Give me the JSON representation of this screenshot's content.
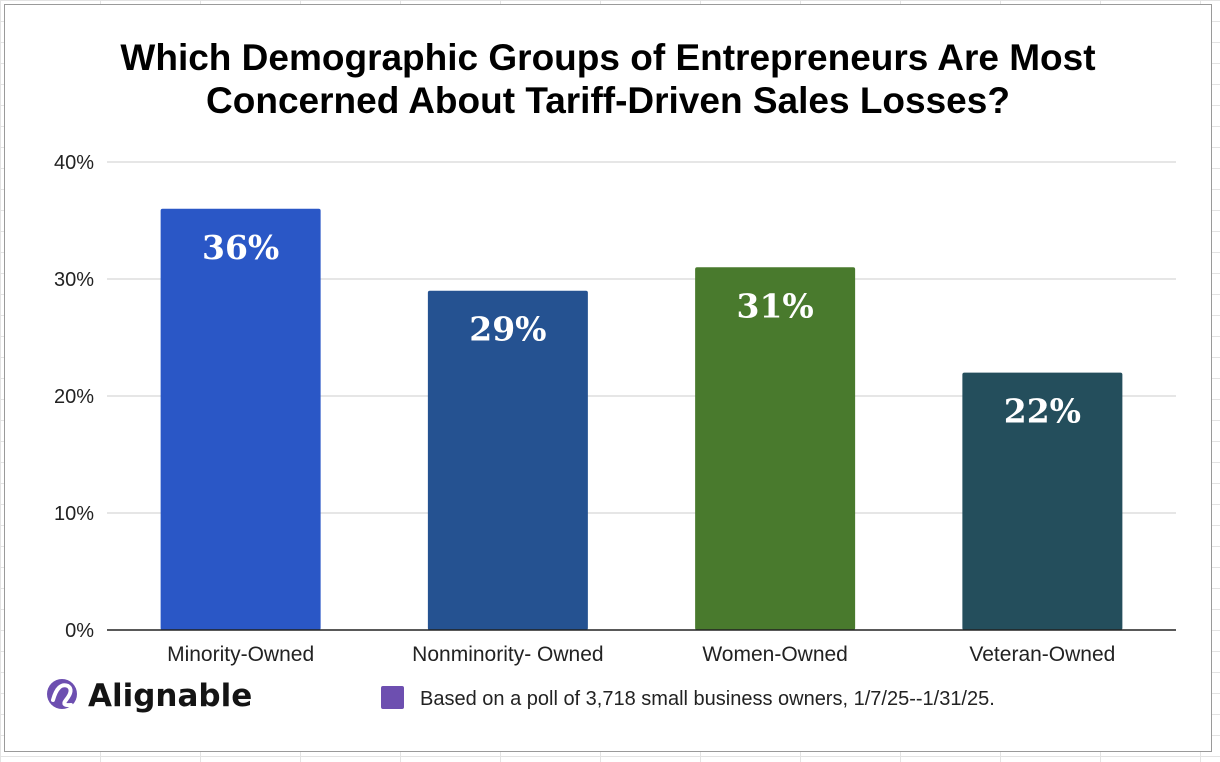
{
  "chart_data": {
    "type": "bar",
    "title_lines": [
      "Which Demographic Groups of Entrepreneurs Are Most",
      "Concerned About Tariff-Driven Sales Losses?"
    ],
    "categories": [
      "Minority-Owned",
      "Nonminority- Owned",
      "Women-Owned",
      "Veteran-Owned"
    ],
    "values": [
      36,
      29,
      31,
      22
    ],
    "data_labels": [
      "36%",
      "29%",
      "31%",
      "22%"
    ],
    "colors": [
      "#2a57c6",
      "#255291",
      "#497a2d",
      "#244e5c"
    ],
    "ylim": [
      0,
      40
    ],
    "yticks": [
      {
        "value": 0,
        "label": "0%"
      },
      {
        "value": 10,
        "label": "10%"
      },
      {
        "value": 20,
        "label": "20%"
      },
      {
        "value": 30,
        "label": "30%"
      },
      {
        "value": 40,
        "label": "40%"
      }
    ],
    "grid": true,
    "legend": {
      "label": "Based on a poll of 3,718 small business owners, 1/7/25--1/31/25.",
      "color": "#6d4fb0",
      "position": "bottom-right"
    }
  },
  "brand": {
    "name": "Alignable",
    "icon": "alignable-logo-icon",
    "color": "#6d4fb0"
  }
}
